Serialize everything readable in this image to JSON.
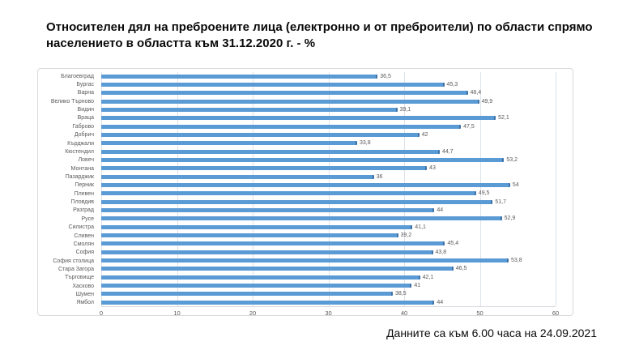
{
  "title_line1": "Относителен дял на преброените лица (електронно и от преброители) по области спрямо",
  "title_line2": " населението в областта към 31.12.2020 г. - %",
  "footer": "Данните са към 6.00 часа на 24.09.2021",
  "chart_data": {
    "type": "bar",
    "orientation": "horizontal",
    "title": "Относителен дял на преброените лица (електронно и от преброители) по области спрямо населението в областта към 31.12.2020 г. - %",
    "categories": [
      "Благоевград",
      "Бургас",
      "Варна",
      "Велико Търново",
      "Видин",
      "Враца",
      "Габрово",
      "Добрич",
      "Кърджали",
      "Кюстендил",
      "Ловеч",
      "Монтана",
      "Пазарджик",
      "Перник",
      "Плевен",
      "Пловдив",
      "Разград",
      "Русе",
      "Силистра",
      "Сливен",
      "Смолян",
      "София",
      "София столица",
      "Стара Загора",
      "Търговище",
      "Хасково",
      "Шумен",
      "Ямбол"
    ],
    "values": [
      36.5,
      45.3,
      48.4,
      49.9,
      39.1,
      52.1,
      47.5,
      42,
      33.8,
      44.7,
      53.2,
      43,
      36,
      54,
      49.5,
      51.7,
      44,
      52.9,
      41.1,
      39.2,
      45.4,
      43.8,
      53.8,
      46.5,
      42.1,
      41,
      38.5,
      44
    ],
    "value_labels": [
      "36,5",
      "45,3",
      "48,4",
      "49,9",
      "39,1",
      "52,1",
      "47,5",
      "42",
      "33,8",
      "44,7",
      "53,2",
      "43",
      "36",
      "54",
      "49,5",
      "51,7",
      "44",
      "52,9",
      "41,1",
      "39,2",
      "45,4",
      "43,8",
      "53,8",
      "46,5",
      "42,1",
      "41",
      "38,5",
      "44"
    ],
    "xlabel": "",
    "ylabel": "",
    "xlim": [
      0,
      60
    ],
    "x_ticks": [
      0,
      10,
      20,
      30,
      40,
      50,
      60
    ],
    "grid": true,
    "legend": "none",
    "bar_color": "#5b9bd5",
    "bar_tip_color": "#3f72a8"
  }
}
